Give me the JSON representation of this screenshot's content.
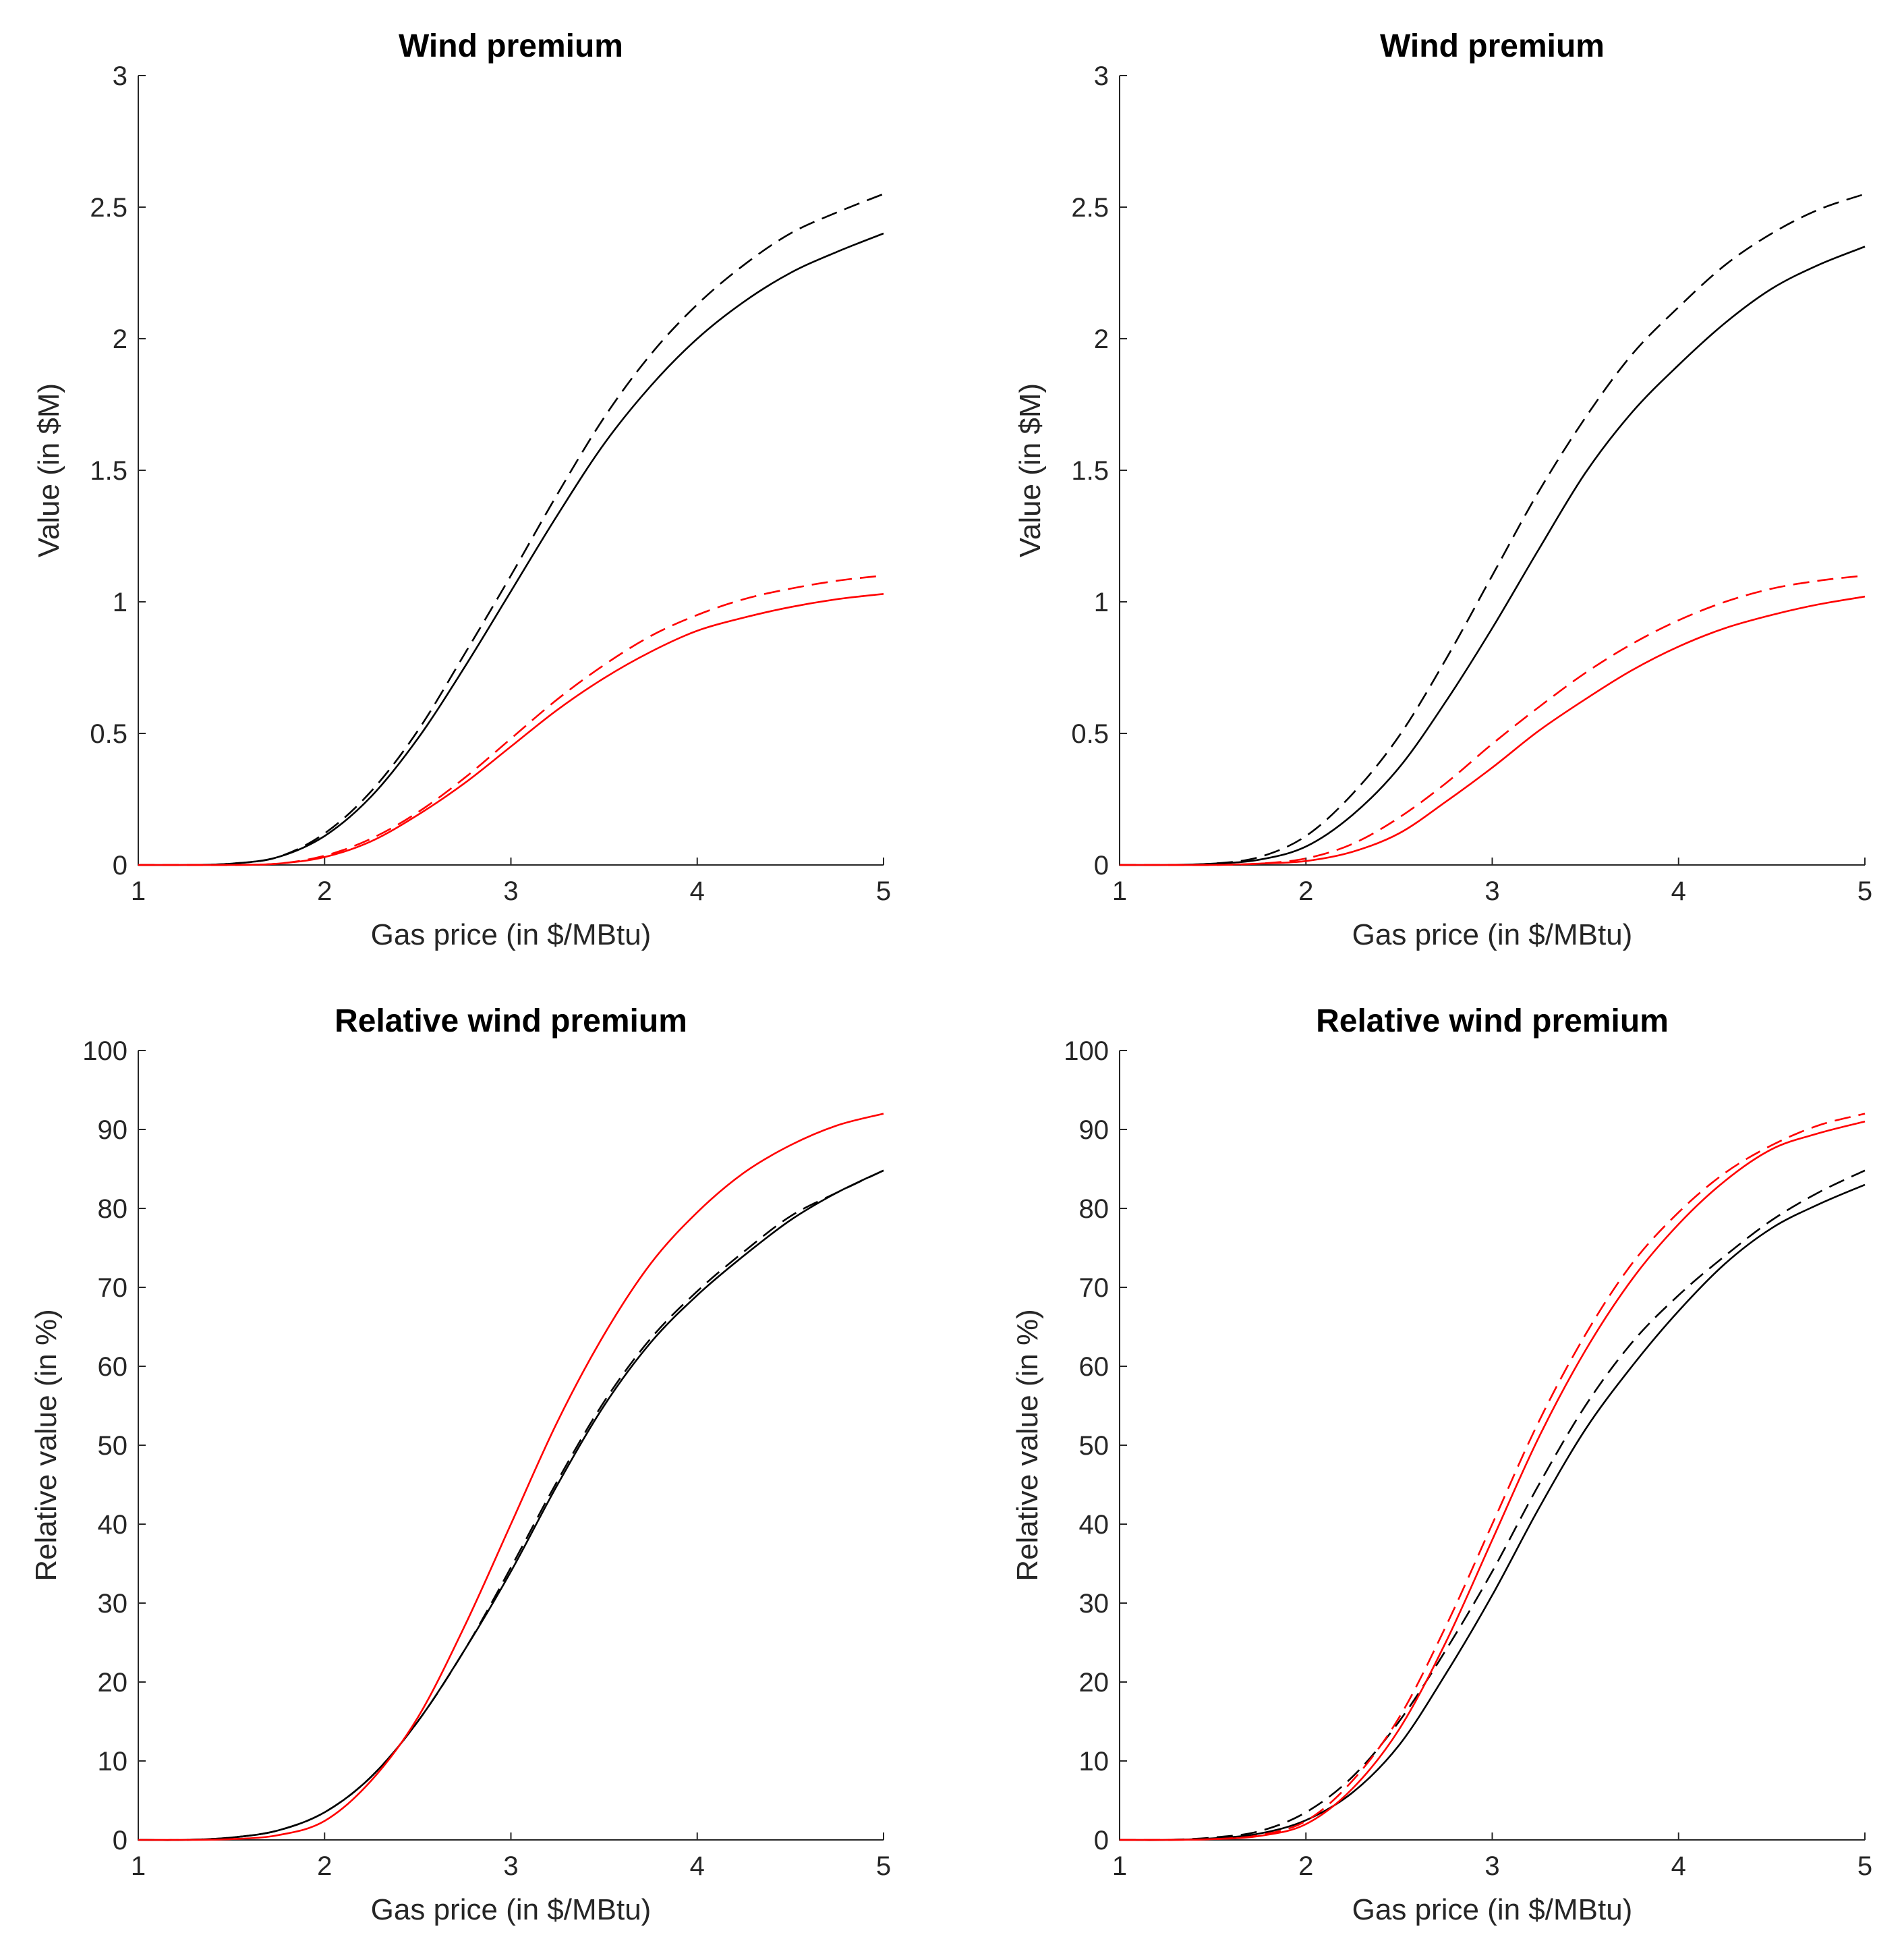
{
  "chart_data": [
    {
      "type": "line",
      "title": "Wind premium",
      "xlabel": "Gas price (in $/MBtu)",
      "ylabel": "Value (in $M)",
      "xlim": [
        1,
        5
      ],
      "ylim": [
        0,
        3
      ],
      "xticks": [
        "1",
        "2",
        "3",
        "4",
        "5"
      ],
      "yticks": [
        "0",
        "0.5",
        "1",
        "1.5",
        "2",
        "2.5",
        "3"
      ],
      "x": [
        1.0,
        1.25,
        1.5,
        1.75,
        2.0,
        2.25,
        2.5,
        2.75,
        3.0,
        3.25,
        3.5,
        3.75,
        4.0,
        4.25,
        4.5,
        4.75,
        5.0
      ],
      "series": [
        {
          "color": "#000000",
          "dash": "solid",
          "values": [
            0,
            0,
            0.005,
            0.03,
            0.11,
            0.26,
            0.48,
            0.75,
            1.04,
            1.33,
            1.6,
            1.82,
            2.0,
            2.14,
            2.25,
            2.33,
            2.4
          ]
        },
        {
          "color": "#000000",
          "dash": "dashed",
          "values": [
            0,
            0,
            0.005,
            0.03,
            0.12,
            0.28,
            0.51,
            0.8,
            1.1,
            1.41,
            1.7,
            1.94,
            2.13,
            2.28,
            2.4,
            2.48,
            2.55
          ]
        },
        {
          "color": "#ff0000",
          "dash": "solid",
          "values": [
            0,
            0,
            0,
            0.005,
            0.03,
            0.09,
            0.19,
            0.31,
            0.45,
            0.59,
            0.71,
            0.81,
            0.89,
            0.94,
            0.98,
            1.01,
            1.03
          ]
        },
        {
          "color": "#ff0000",
          "dash": "dashed",
          "values": [
            0,
            0,
            0,
            0.005,
            0.035,
            0.1,
            0.2,
            0.33,
            0.48,
            0.63,
            0.76,
            0.87,
            0.95,
            1.01,
            1.05,
            1.08,
            1.1
          ]
        }
      ]
    },
    {
      "type": "line",
      "title": "Wind premium",
      "xlabel": "Gas price (in $/MBtu)",
      "ylabel": "Value (in $M)",
      "xlim": [
        1,
        5
      ],
      "ylim": [
        0,
        3
      ],
      "xticks": [
        "1",
        "2",
        "3",
        "4",
        "5"
      ],
      "yticks": [
        "0",
        "0.5",
        "1",
        "1.5",
        "2",
        "2.5",
        "3"
      ],
      "x": [
        1.0,
        1.25,
        1.5,
        1.75,
        2.0,
        2.25,
        2.5,
        2.75,
        3.0,
        3.25,
        3.5,
        3.75,
        4.0,
        4.25,
        4.5,
        4.75,
        5.0
      ],
      "series": [
        {
          "color": "#000000",
          "dash": "solid",
          "values": [
            0,
            0,
            0.005,
            0.02,
            0.07,
            0.19,
            0.37,
            0.62,
            0.9,
            1.2,
            1.49,
            1.72,
            1.9,
            2.06,
            2.19,
            2.28,
            2.35
          ]
        },
        {
          "color": "#000000",
          "dash": "dashed",
          "values": [
            0,
            0,
            0.005,
            0.03,
            0.11,
            0.27,
            0.49,
            0.78,
            1.1,
            1.42,
            1.7,
            1.94,
            2.12,
            2.28,
            2.4,
            2.49,
            2.55
          ]
        },
        {
          "color": "#ff0000",
          "dash": "solid",
          "values": [
            0,
            0,
            0,
            0.005,
            0.015,
            0.05,
            0.12,
            0.24,
            0.37,
            0.51,
            0.63,
            0.74,
            0.83,
            0.9,
            0.95,
            0.99,
            1.02
          ]
        },
        {
          "color": "#ff0000",
          "dash": "dashed",
          "values": [
            0,
            0,
            0,
            0.005,
            0.025,
            0.08,
            0.18,
            0.31,
            0.46,
            0.6,
            0.73,
            0.84,
            0.93,
            1.0,
            1.05,
            1.08,
            1.1
          ]
        }
      ]
    },
    {
      "type": "line",
      "title": "Relative wind premium",
      "xlabel": "Gas price (in $/MBtu)",
      "ylabel": "Relative value (in %)",
      "xlim": [
        1,
        5
      ],
      "ylim": [
        0,
        100
      ],
      "xticks": [
        "1",
        "2",
        "3",
        "4",
        "5"
      ],
      "yticks": [
        "0",
        "10",
        "20",
        "30",
        "40",
        "50",
        "60",
        "70",
        "80",
        "90",
        "100"
      ],
      "x": [
        1.0,
        1.25,
        1.5,
        1.75,
        2.0,
        2.25,
        2.5,
        2.75,
        3.0,
        3.25,
        3.5,
        3.75,
        4.0,
        4.25,
        4.5,
        4.75,
        5.0
      ],
      "series": [
        {
          "color": "#000000",
          "dash": "solid",
          "values": [
            0,
            0,
            0.3,
            1.2,
            3.5,
            8,
            15,
            24,
            34,
            45,
            55,
            63,
            69,
            74,
            78.5,
            82,
            84.8
          ]
        },
        {
          "color": "#000000",
          "dash": "dashed",
          "values": [
            0,
            0,
            0.3,
            1.2,
            3.5,
            8,
            15,
            24,
            34.5,
            45.5,
            55.5,
            63.5,
            69.5,
            74.5,
            79,
            82,
            84.8
          ]
        },
        {
          "color": "#ff0000",
          "dash": "solid",
          "values": [
            0,
            0,
            0.1,
            0.6,
            2.4,
            7.5,
            15.5,
            27,
            40,
            53,
            64,
            73,
            79.5,
            84.5,
            88,
            90.5,
            92
          ]
        }
      ]
    },
    {
      "type": "line",
      "title": "Relative wind premium",
      "xlabel": "Gas price (in $/MBtu)",
      "ylabel": "Relative value (in %)",
      "xlim": [
        1,
        5
      ],
      "ylim": [
        0,
        100
      ],
      "xticks": [
        "1",
        "2",
        "3",
        "4",
        "5"
      ],
      "yticks": [
        "0",
        "10",
        "20",
        "30",
        "40",
        "50",
        "60",
        "70",
        "80",
        "90",
        "100"
      ],
      "x": [
        1.0,
        1.25,
        1.5,
        1.75,
        2.0,
        2.25,
        2.5,
        2.75,
        3.0,
        3.25,
        3.5,
        3.75,
        4.0,
        4.25,
        4.5,
        4.75,
        5.0
      ],
      "series": [
        {
          "color": "#000000",
          "dash": "solid",
          "values": [
            0,
            0,
            0.2,
            0.8,
            2.5,
            6,
            12,
            21,
            31,
            42,
            52,
            60,
            67,
            73,
            77.5,
            80.5,
            83
          ]
        },
        {
          "color": "#000000",
          "dash": "dashed",
          "values": [
            0,
            0,
            0.3,
            1.1,
            3.5,
            8,
            15,
            24,
            34,
            45,
            55,
            63,
            69,
            74,
            78.5,
            82,
            84.8
          ]
        },
        {
          "color": "#ff0000",
          "dash": "solid",
          "values": [
            0,
            0,
            0.1,
            0.5,
            2,
            6.5,
            14,
            25,
            38,
            51,
            62,
            71,
            78,
            83.5,
            87.5,
            89.5,
            91
          ]
        },
        {
          "color": "#ff0000",
          "dash": "dashed",
          "values": [
            0,
            0,
            0.1,
            0.6,
            2.4,
            7.5,
            15.5,
            27,
            40,
            53,
            64,
            73,
            79.5,
            84.5,
            88,
            90.5,
            92
          ]
        }
      ]
    }
  ]
}
